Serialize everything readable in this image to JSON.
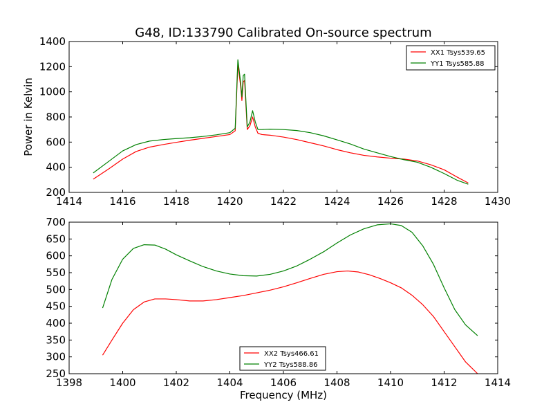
{
  "figure": {
    "title": "G48, ID:133790 Calibrated On-source spectrum"
  },
  "chart_data": [
    {
      "type": "line",
      "title": "G48, ID:133790 Calibrated On-source spectrum",
      "xlabel": "",
      "ylabel": "Power in Kelvin",
      "xlim": [
        1414,
        1430
      ],
      "ylim": [
        200,
        1400
      ],
      "xticks": [
        1414,
        1416,
        1418,
        1420,
        1422,
        1424,
        1426,
        1428,
        1430
      ],
      "yticks": [
        200,
        400,
        600,
        800,
        1000,
        1200,
        1400
      ],
      "grid": false,
      "legend": "top-right",
      "series": [
        {
          "name": "XX1 Tsys539.65",
          "color": "#ff0000",
          "x": [
            1414.9,
            1415.5,
            1416.0,
            1416.5,
            1417.0,
            1417.5,
            1418.0,
            1418.5,
            1419.0,
            1419.5,
            1420.0,
            1420.2,
            1420.3,
            1420.4,
            1420.45,
            1420.5,
            1420.55,
            1420.65,
            1420.75,
            1420.85,
            1420.95,
            1421.05,
            1421.2,
            1421.5,
            1422.0,
            1422.5,
            1423.0,
            1423.5,
            1424.0,
            1424.5,
            1425.0,
            1425.5,
            1426.0,
            1426.5,
            1427.0,
            1427.5,
            1428.0,
            1428.5,
            1428.9
          ],
          "values": [
            305,
            390,
            465,
            525,
            560,
            580,
            598,
            615,
            630,
            645,
            660,
            690,
            1220,
            1050,
            930,
            1080,
            1090,
            700,
            730,
            800,
            720,
            670,
            660,
            655,
            640,
            620,
            595,
            570,
            540,
            515,
            495,
            482,
            472,
            465,
            450,
            420,
            380,
            320,
            275
          ]
        },
        {
          "name": "YY1 Tsys585.88",
          "color": "#008000",
          "x": [
            1414.9,
            1415.5,
            1416.0,
            1416.5,
            1417.0,
            1417.5,
            1418.0,
            1418.5,
            1419.0,
            1419.5,
            1420.0,
            1420.2,
            1420.3,
            1420.4,
            1420.45,
            1420.5,
            1420.55,
            1420.65,
            1420.75,
            1420.85,
            1420.95,
            1421.05,
            1421.2,
            1421.5,
            1422.0,
            1422.5,
            1423.0,
            1423.5,
            1424.0,
            1424.5,
            1425.0,
            1425.5,
            1426.0,
            1426.5,
            1427.0,
            1427.5,
            1428.0,
            1428.5,
            1428.9
          ],
          "values": [
            355,
            450,
            530,
            580,
            608,
            620,
            628,
            635,
            645,
            658,
            675,
            710,
            1255,
            1080,
            960,
            1130,
            1140,
            720,
            760,
            850,
            760,
            700,
            700,
            703,
            700,
            692,
            675,
            650,
            618,
            585,
            545,
            515,
            485,
            460,
            440,
            400,
            350,
            295,
            265
          ]
        }
      ]
    },
    {
      "type": "line",
      "title": "",
      "xlabel": "Frequency (MHz)",
      "ylabel": "",
      "xlim": [
        1398,
        1414
      ],
      "ylim": [
        250,
        700
      ],
      "xticks": [
        1398,
        1400,
        1402,
        1404,
        1406,
        1408,
        1410,
        1412,
        1414
      ],
      "yticks": [
        250,
        300,
        350,
        400,
        450,
        500,
        550,
        600,
        650,
        700
      ],
      "grid": false,
      "legend": "bottom-center",
      "series": [
        {
          "name": "XX2 Tsys466.61",
          "color": "#ff0000",
          "x": [
            1399.25,
            1399.6,
            1400.0,
            1400.4,
            1400.8,
            1401.2,
            1401.6,
            1402.0,
            1402.5,
            1403.0,
            1403.5,
            1404.0,
            1404.5,
            1405.0,
            1405.5,
            1406.0,
            1406.5,
            1407.0,
            1407.5,
            1408.0,
            1408.4,
            1408.8,
            1409.2,
            1409.6,
            1410.0,
            1410.4,
            1410.8,
            1411.2,
            1411.6,
            1412.0,
            1412.4,
            1412.8,
            1413.25
          ],
          "values": [
            305,
            350,
            400,
            440,
            463,
            472,
            472,
            470,
            466,
            466,
            470,
            476,
            482,
            490,
            498,
            508,
            520,
            533,
            545,
            553,
            555,
            552,
            544,
            533,
            520,
            505,
            483,
            455,
            420,
            375,
            330,
            285,
            250
          ]
        },
        {
          "name": "YY2 Tsys588.86",
          "color": "#008000",
          "x": [
            1399.25,
            1399.6,
            1400.0,
            1400.4,
            1400.8,
            1401.2,
            1401.6,
            1402.0,
            1402.5,
            1403.0,
            1403.5,
            1404.0,
            1404.5,
            1405.0,
            1405.5,
            1406.0,
            1406.5,
            1407.0,
            1407.5,
            1408.0,
            1408.5,
            1409.0,
            1409.5,
            1410.0,
            1410.4,
            1410.8,
            1411.2,
            1411.6,
            1412.0,
            1412.4,
            1412.8,
            1413.25
          ],
          "values": [
            445,
            530,
            590,
            622,
            633,
            632,
            620,
            603,
            585,
            568,
            555,
            546,
            541,
            540,
            545,
            555,
            570,
            590,
            612,
            638,
            662,
            680,
            692,
            695,
            690,
            670,
            630,
            575,
            505,
            440,
            395,
            363
          ]
        }
      ]
    }
  ]
}
